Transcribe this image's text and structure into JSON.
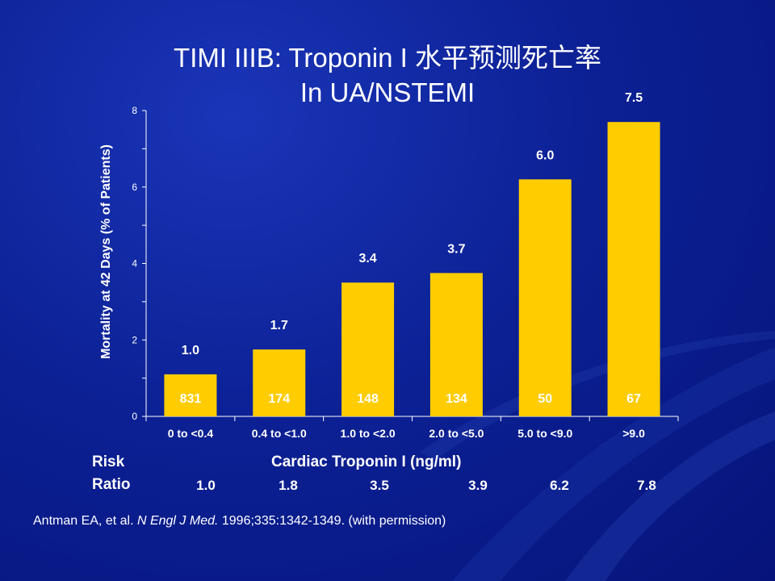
{
  "title": {
    "line1": "TIMI IIIB:  Troponin I 水平预测死亡率",
    "line2": "In UA/NSTEMI"
  },
  "colors": {
    "bar": "#ffcc00",
    "bar_value_text": "#ffffff",
    "background": "#0c2195",
    "text": "#ffffff"
  },
  "chart_data": {
    "type": "bar",
    "title": "",
    "ylabel": "Mortality at 42 Days (% of Patients)",
    "xlabel": "Cardiac Troponin I (ng/ml)",
    "ylim": [
      0,
      8
    ],
    "yticks": [
      0,
      2,
      4,
      6,
      8
    ],
    "categories": [
      "0 to <0.4",
      "0.4 to <1.0",
      "1.0 to <2.0",
      "2.0 to <5.0",
      "5.0 to <9.0",
      ">9.0"
    ],
    "values": [
      1.0,
      1.7,
      3.4,
      3.7,
      6.0,
      7.5
    ],
    "bar_heights": [
      1.1,
      1.75,
      3.5,
      3.75,
      6.2,
      7.7
    ],
    "data_labels": [
      "1.0",
      "1.7",
      "3.4",
      "3.7",
      "6.0",
      "7.5"
    ],
    "patient_counts": [
      "831",
      "174",
      "148",
      "134",
      "50",
      "67"
    ]
  },
  "risk": {
    "label_line1": "Risk",
    "label_line2": "Ratio",
    "values": [
      "1.0",
      "1.8",
      "3.5",
      "3.9",
      "6.2",
      "7.8"
    ]
  },
  "citation": {
    "authors": "Antman EA, et al. ",
    "journal": "N Engl J Med.",
    "rest": " 1996;335:1342-1349. (with permission)"
  }
}
